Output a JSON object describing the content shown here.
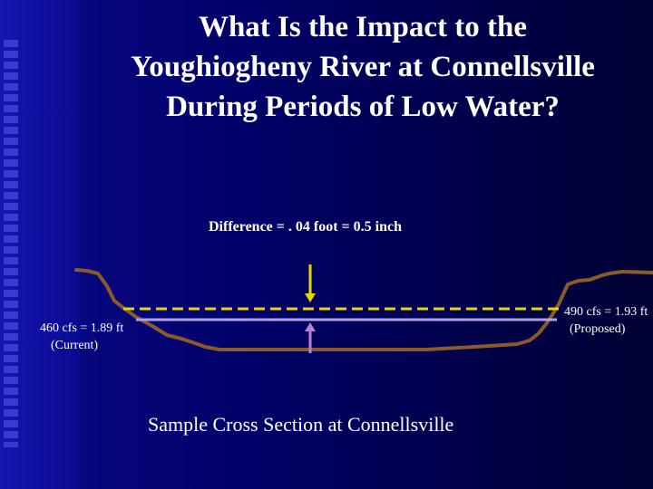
{
  "slide": {
    "title": "What Is the Impact to the\nYoughiogheny River at Connellsville\nDuring Periods of Low Water?"
  },
  "diagram": {
    "difference_label": "Difference = . 04 foot = 0.5 inch",
    "current": {
      "line1": "460 cfs = 1.89 ft",
      "line2": "(Current)"
    },
    "proposed": {
      "line1": "490 cfs = 1.93 ft",
      "line2": "(Proposed)"
    },
    "caption": "Sample Cross Section at Connellsville"
  },
  "colors": {
    "background": "#000066",
    "riverbed": "#8b5a2b",
    "water_current": "#b0a0e8",
    "water_proposed": "#e6d800",
    "arrow_down": "#e6d800",
    "arrow_up": "#c080d0",
    "text": "#ffffff"
  }
}
